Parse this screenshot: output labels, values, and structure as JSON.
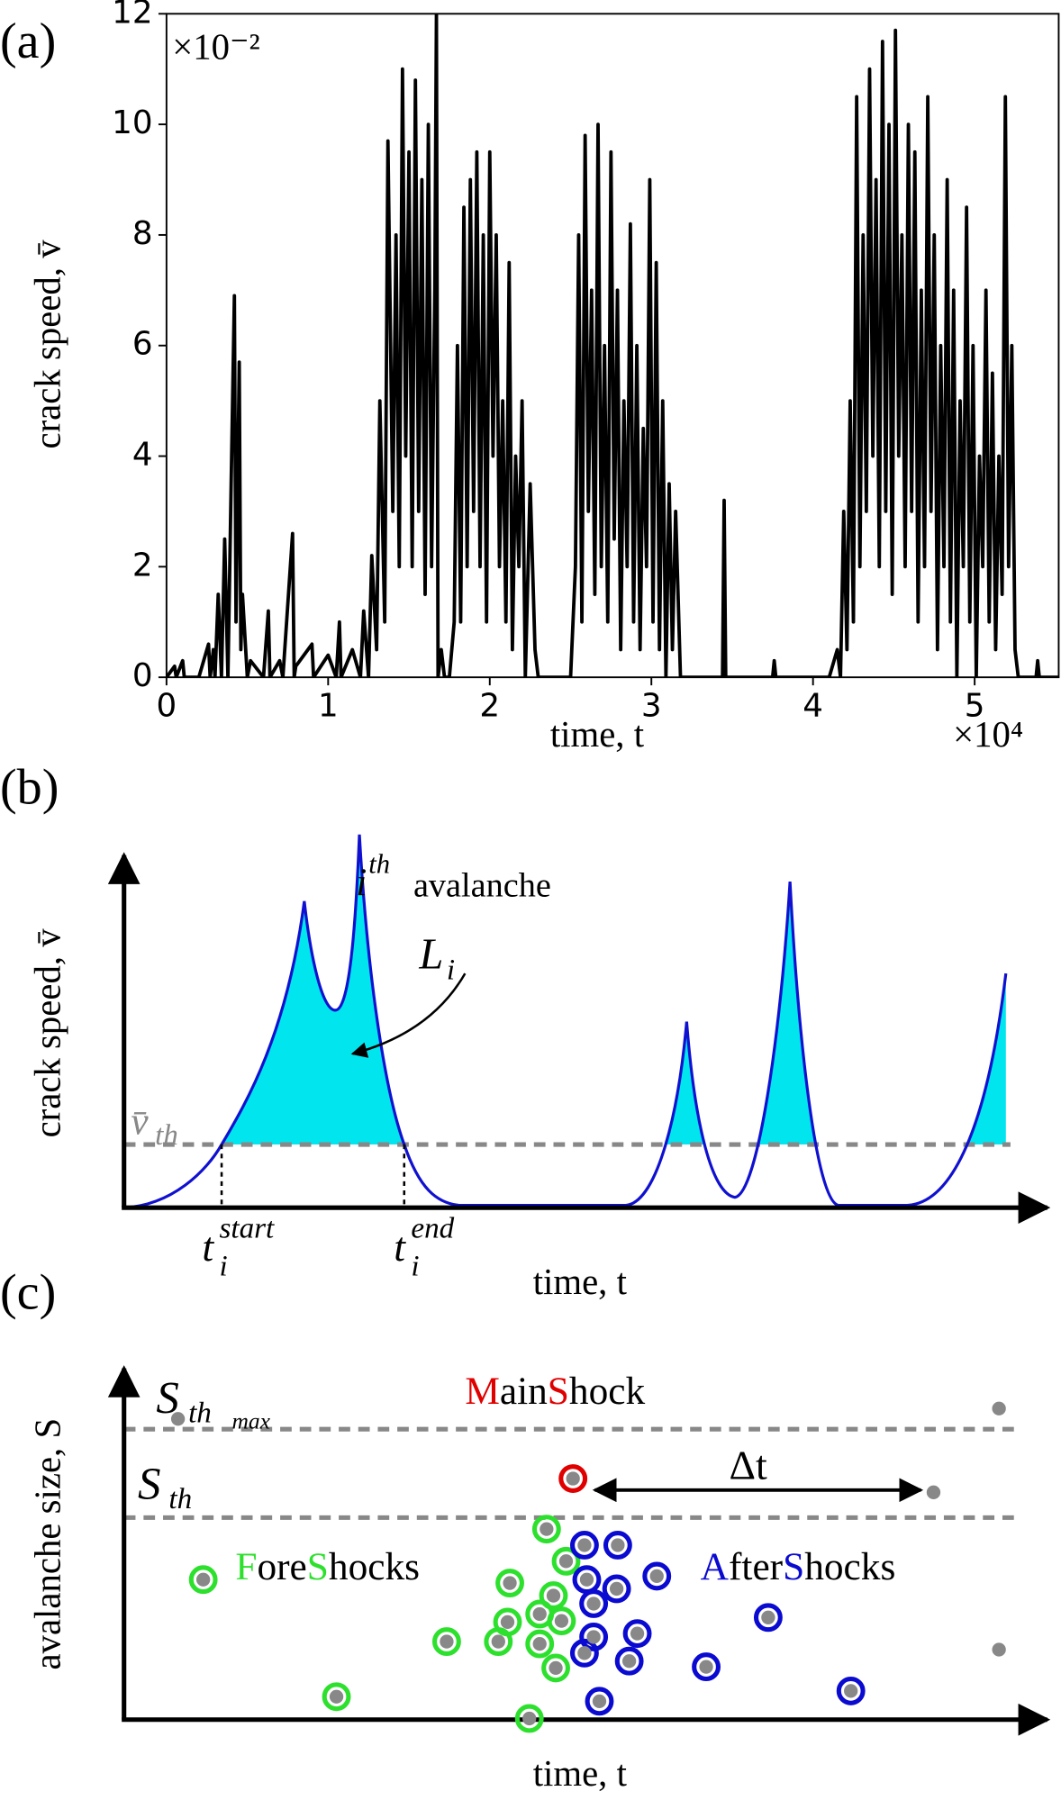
{
  "chart_data": {
    "type": "line",
    "panel_label": "(a)",
    "xlabel": "time, t",
    "ylabel": "crack speed, v̄",
    "x_offset_label": "×10⁴",
    "y_offset_label": "×10⁻²",
    "color": "#000000",
    "xlim": [
      0,
      5.52
    ],
    "ylim": [
      0,
      12
    ],
    "xticks": [
      0,
      1,
      2,
      3,
      4,
      5
    ],
    "yticks": [
      0,
      2,
      4,
      6,
      8,
      10,
      12
    ],
    "x": [
      0,
      0.05,
      0.06,
      0.1,
      0.11,
      0.2,
      0.26,
      0.27,
      0.29,
      0.3,
      0.32,
      0.34,
      0.36,
      0.38,
      0.4,
      0.42,
      0.43,
      0.45,
      0.46,
      0.47,
      0.5,
      0.52,
      0.6,
      0.63,
      0.64,
      0.7,
      0.72,
      0.78,
      0.79,
      0.8,
      0.9,
      0.91,
      1.0,
      1.05,
      1.07,
      1.08,
      1.15,
      1.2,
      1.22,
      1.25,
      1.27,
      1.3,
      1.32,
      1.35,
      1.37,
      1.4,
      1.42,
      1.44,
      1.46,
      1.48,
      1.5,
      1.52,
      1.54,
      1.56,
      1.58,
      1.6,
      1.62,
      1.64,
      1.66,
      1.67,
      1.68,
      1.7,
      1.72,
      1.75,
      1.78,
      1.8,
      1.82,
      1.84,
      1.86,
      1.88,
      1.9,
      1.92,
      1.94,
      1.96,
      1.98,
      2.0,
      2.02,
      2.04,
      2.06,
      2.08,
      2.1,
      2.12,
      2.14,
      2.16,
      2.18,
      2.2,
      2.22,
      2.25,
      2.28,
      2.3,
      2.5,
      2.53,
      2.55,
      2.57,
      2.59,
      2.61,
      2.63,
      2.65,
      2.67,
      2.69,
      2.71,
      2.73,
      2.75,
      2.77,
      2.79,
      2.81,
      2.83,
      2.85,
      2.87,
      2.89,
      2.91,
      2.93,
      2.95,
      2.97,
      2.99,
      3.01,
      3.03,
      3.05,
      3.07,
      3.09,
      3.11,
      3.13,
      3.15,
      3.18,
      3.2,
      3.44,
      3.45,
      3.46,
      3.75,
      3.76,
      3.77,
      4.1,
      4.15,
      4.17,
      4.19,
      4.21,
      4.23,
      4.25,
      4.27,
      4.29,
      4.31,
      4.33,
      4.35,
      4.37,
      4.39,
      4.41,
      4.43,
      4.45,
      4.47,
      4.49,
      4.51,
      4.53,
      4.55,
      4.57,
      4.59,
      4.61,
      4.63,
      4.65,
      4.67,
      4.69,
      4.71,
      4.73,
      4.75,
      4.77,
      4.79,
      4.81,
      4.83,
      4.85,
      4.87,
      4.89,
      4.91,
      4.93,
      4.95,
      4.97,
      4.99,
      5.01,
      5.03,
      5.05,
      5.07,
      5.09,
      5.11,
      5.13,
      5.15,
      5.17,
      5.19,
      5.21,
      5.23,
      5.25,
      5.27,
      5.3,
      5.38,
      5.39,
      5.4,
      5.52
    ],
    "values": [
      0,
      0.2,
      0,
      0.3,
      0,
      0,
      0.6,
      0,
      0.5,
      0,
      1.5,
      0,
      2.5,
      0,
      3.5,
      6.9,
      1,
      5.7,
      0.5,
      1.5,
      0,
      0.3,
      0,
      1.2,
      0,
      0.3,
      0,
      2.6,
      0,
      0.2,
      0.6,
      0,
      0.4,
      0,
      1.0,
      0,
      0.5,
      0,
      1.2,
      0,
      2.2,
      0.5,
      5,
      1,
      9.7,
      3,
      8,
      2,
      11,
      4,
      9.5,
      2,
      10.8,
      3,
      9,
      1.5,
      10,
      2,
      7,
      12,
      0,
      0.5,
      0,
      0,
      1,
      6,
      1,
      8.5,
      2,
      9,
      3,
      9.5,
      2,
      8,
      1,
      9.5,
      4,
      8,
      2,
      5,
      1,
      7.5,
      0.5,
      4,
      2,
      5,
      0,
      3.5,
      0.5,
      0,
      0,
      2,
      8,
      1,
      9.8,
      3,
      7,
      1.5,
      10,
      2,
      6,
      1,
      9.5,
      2.5,
      7,
      0.5,
      5,
      2,
      8.2,
      1,
      6,
      0.5,
      4.5,
      2,
      9,
      1,
      7.5,
      0.5,
      5,
      0,
      3.5,
      0.5,
      3,
      0,
      0,
      0,
      3.2,
      0,
      0,
      0.3,
      0,
      0,
      0.5,
      0,
      3,
      0.5,
      5,
      1,
      10.5,
      2,
      8,
      3,
      11,
      4,
      9,
      2,
      11.5,
      3,
      10,
      1.5,
      11.7,
      4,
      8,
      2,
      10,
      3,
      9.5,
      1,
      7,
      2,
      10.5,
      3,
      8,
      0.5,
      6,
      2,
      9,
      1,
      7,
      0,
      5,
      2,
      8.5,
      1,
      6,
      0,
      4,
      2,
      7,
      1,
      5.5,
      0.5,
      4,
      1.5,
      10.5,
      2,
      6,
      0.5,
      0,
      0,
      0,
      0.3,
      0,
      0
    ]
  },
  "panel_b": {
    "label": "(b)",
    "ylabel": "crack speed, v̄",
    "xlabel": "time, t",
    "threshold_label": {
      "base": "v̄",
      "sub": "th"
    },
    "avalanche_label": {
      "base": "i",
      "sup": "th",
      "text": "avalanche"
    },
    "area_label": {
      "base": "L",
      "sub": "i"
    },
    "t_start": {
      "base": "t",
      "sub": "i",
      "sup": "start"
    },
    "t_end": {
      "base": "t",
      "sub": "i",
      "sup": "end"
    }
  },
  "panel_c": {
    "label": "(c)",
    "ylabel": "avalanche size, S",
    "xlabel": "time, t",
    "s_th_max": {
      "base": "S",
      "sub": "th",
      "subsub": "max"
    },
    "s_th": {
      "base": "S",
      "sub": "th"
    },
    "interval_label": "Δt",
    "main_shock": [
      {
        "text": "M",
        "color": "#e00000"
      },
      {
        "text": "ain",
        "color": "#000000"
      },
      {
        "text": "S",
        "color": "#e00000"
      },
      {
        "text": "hock",
        "color": "#000000"
      }
    ],
    "fore_shocks": [
      {
        "text": "F",
        "color": "#2ee02e"
      },
      {
        "text": "ore",
        "color": "#000000"
      },
      {
        "text": "S",
        "color": "#2ee02e"
      },
      {
        "text": "hocks",
        "color": "#000000"
      }
    ],
    "after_shocks": [
      {
        "text": "A",
        "color": "#0a0ad0"
      },
      {
        "text": "fter",
        "color": "#000000"
      },
      {
        "text": "S",
        "color": "#0a0ad0"
      },
      {
        "text": "hocks",
        "color": "#000000"
      }
    ]
  }
}
